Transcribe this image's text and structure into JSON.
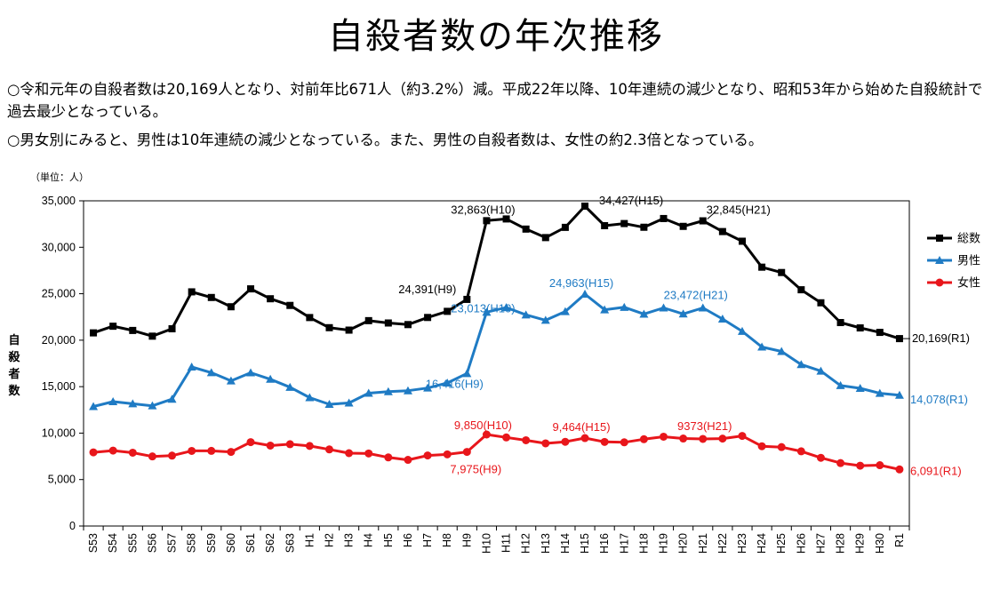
{
  "page": {
    "title": "自殺者数の年次推移",
    "bullets": [
      "○令和元年の自殺者数は20,169人となり、対前年比671人（約3.2%）減。平成22年以降、10年連続の減少となり、昭和53年から始めた自殺統計で過去最少となっている。",
      "○男女別にみると、男性は10年連続の減少となっている。また、男性の自殺者数は、女性の約2.3倍となっている。"
    ]
  },
  "chart_data": {
    "type": "line",
    "unit_label": "（単位：人）",
    "ylabel": "自殺者数",
    "ylim": [
      0,
      35000
    ],
    "yticks": [
      "0",
      "5,000",
      "10,000",
      "15,000",
      "20,000",
      "25,000",
      "30,000",
      "35,000"
    ],
    "categories": [
      "S53",
      "S54",
      "S55",
      "S56",
      "S57",
      "S58",
      "S59",
      "S60",
      "S61",
      "S62",
      "S63",
      "H1",
      "H2",
      "H3",
      "H4",
      "H5",
      "H6",
      "H7",
      "H8",
      "H9",
      "H10",
      "H11",
      "H12",
      "H13",
      "H14",
      "H15",
      "H16",
      "H17",
      "H18",
      "H19",
      "H20",
      "H21",
      "H22",
      "H23",
      "H24",
      "H25",
      "H26",
      "H27",
      "H28",
      "H29",
      "H30",
      "R1"
    ],
    "series": [
      {
        "name": "総数",
        "color": "#000000",
        "marker": "square",
        "values": [
          20788,
          21503,
          21048,
          20434,
          21228,
          25202,
          24596,
          23599,
          25524,
          24460,
          23742,
          22436,
          21346,
          21084,
          22104,
          21851,
          21679,
          22445,
          23104,
          24391,
          32863,
          33048,
          31957,
          31042,
          32143,
          34427,
          32325,
          32552,
          32155,
          33093,
          32249,
          32845,
          31690,
          30651,
          27858,
          27283,
          25427,
          24025,
          21897,
          21321,
          20840,
          20169
        ]
      },
      {
        "name": "男性",
        "color": "#1f7bc4",
        "marker": "triangle",
        "values": [
          12859,
          13386,
          13155,
          12942,
          13654,
          17116,
          16508,
          15624,
          16497,
          15802,
          14934,
          13818,
          13102,
          13242,
          14296,
          14468,
          14560,
          14853,
          15393,
          16416,
          23013,
          23512,
          22727,
          22144,
          23080,
          24963,
          23272,
          23540,
          22813,
          23478,
          22831,
          23472,
          22283,
          20955,
          19273,
          18787,
          17386,
          16681,
          15121,
          14826,
          14290,
          14078
        ]
      },
      {
        "name": "女性",
        "color": "#e8161b",
        "marker": "circle",
        "values": [
          7929,
          8117,
          7893,
          7492,
          7574,
          8086,
          8088,
          7975,
          9027,
          8658,
          8808,
          8618,
          8244,
          7842,
          7808,
          7383,
          7119,
          7592,
          7711,
          7975,
          9850,
          9536,
          9230,
          8898,
          9063,
          9464,
          9053,
          9012,
          9342,
          9615,
          9418,
          9373,
          9407,
          9696,
          8585,
          8496,
          8041,
          7344,
          6776,
          6495,
          6550,
          6091
        ]
      }
    ],
    "legend_position": "right",
    "grid": false,
    "annotations": [
      {
        "series": 0,
        "index": 19,
        "text": "24,391(H9)",
        "color": "#000000"
      },
      {
        "series": 0,
        "index": 20,
        "text": "32,863(H10)",
        "color": "#000000"
      },
      {
        "series": 0,
        "index": 25,
        "text": "34,427(H15)",
        "color": "#000000"
      },
      {
        "series": 0,
        "index": 31,
        "text": "32,845(H21)",
        "color": "#000000"
      },
      {
        "series": 0,
        "index": 41,
        "text": "20,169(R1)",
        "color": "#000000"
      },
      {
        "series": 1,
        "index": 19,
        "text": "16,416(H9)",
        "color": "#1f7bc4"
      },
      {
        "series": 1,
        "index": 20,
        "text": "23,013(H10)",
        "color": "#1f7bc4"
      },
      {
        "series": 1,
        "index": 25,
        "text": "24,963(H15)",
        "color": "#1f7bc4"
      },
      {
        "series": 1,
        "index": 31,
        "text": "23,472(H21)",
        "color": "#1f7bc4"
      },
      {
        "series": 1,
        "index": 41,
        "text": "14,078(R1)",
        "color": "#1f7bc4"
      },
      {
        "series": 2,
        "index": 19,
        "text": "7,975(H9)",
        "color": "#e8161b"
      },
      {
        "series": 2,
        "index": 20,
        "text": "9,850(H10)",
        "color": "#e8161b"
      },
      {
        "series": 2,
        "index": 25,
        "text": "9,464(H15)",
        "color": "#e8161b"
      },
      {
        "series": 2,
        "index": 31,
        "text": "9373(H21)",
        "color": "#e8161b"
      },
      {
        "series": 2,
        "index": 41,
        "text": "6,091(R1)",
        "color": "#e8161b"
      }
    ]
  }
}
